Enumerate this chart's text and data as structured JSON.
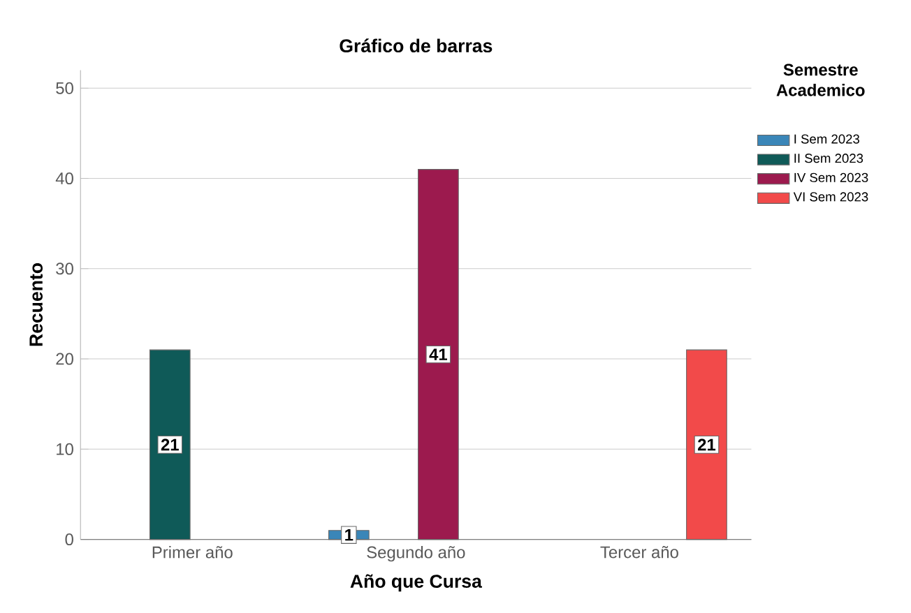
{
  "chart_data": {
    "type": "bar",
    "title": "Gráfico de barras",
    "xlabel": "Año que Cursa",
    "ylabel": "Recuento",
    "legend_title": "Semestre Academico",
    "categories": [
      "Primer año",
      "Segundo año",
      "Tercer año"
    ],
    "series": [
      {
        "name": "I Sem 2023",
        "color": "#3a86b8",
        "values": [
          null,
          1,
          null
        ]
      },
      {
        "name": "II Sem 2023",
        "color": "#0f5a58",
        "values": [
          21,
          null,
          null
        ]
      },
      {
        "name": "IV Sem 2023",
        "color": "#9c1a4e",
        "values": [
          null,
          41,
          null
        ]
      },
      {
        "name": "VI Sem 2023",
        "color": "#f24a4a",
        "values": [
          null,
          null,
          21
        ]
      }
    ],
    "ylim": [
      0,
      52
    ],
    "yticks": [
      0,
      10,
      20,
      30,
      40,
      50
    ],
    "grid": "y",
    "legend": "top right",
    "data_labels": true
  }
}
